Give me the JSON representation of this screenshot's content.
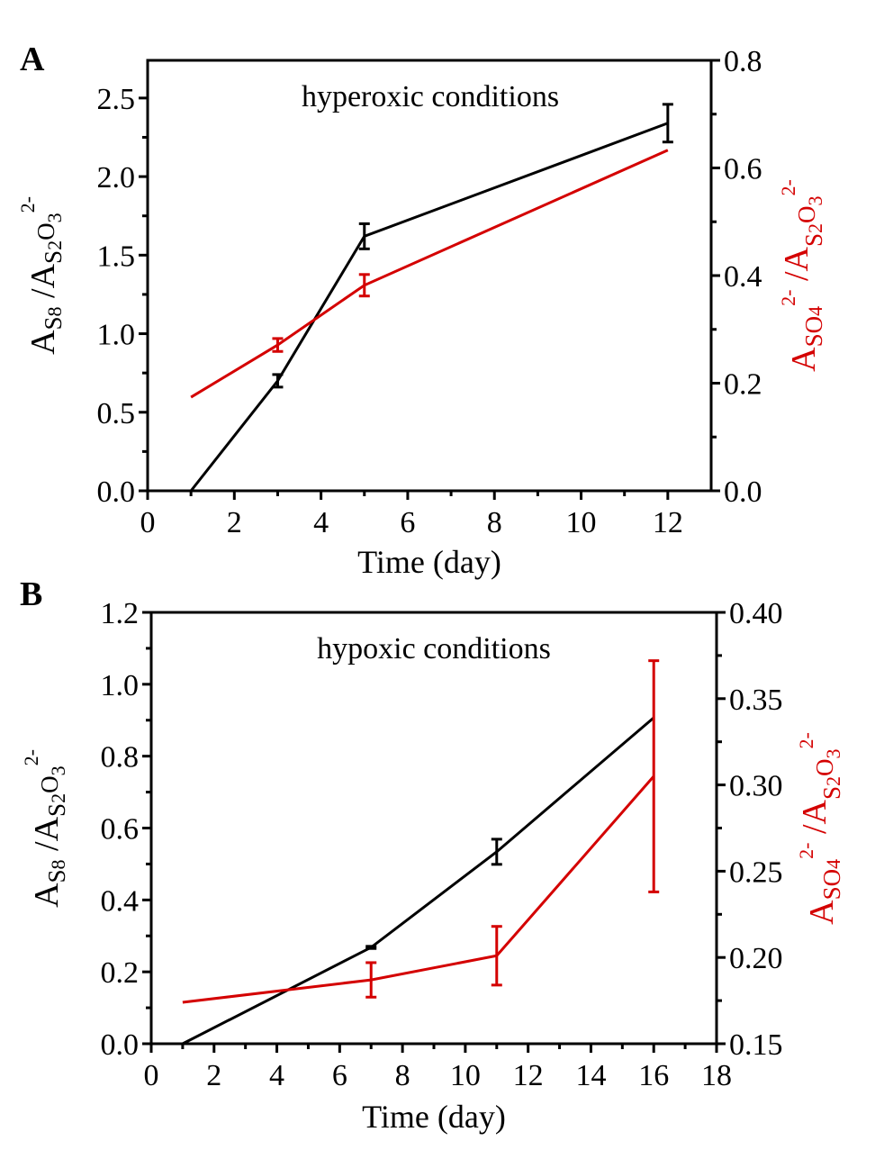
{
  "colors": {
    "black_series": "#000000",
    "red_series": "#d40000",
    "axis": "#000000"
  },
  "chart_data": [
    {
      "type": "line",
      "panel": "A",
      "annotation": "hyperoxic conditions",
      "xlabel": "Time (day)",
      "ylabel_left": {
        "main": "A",
        "sub1": "S",
        "sub1b": "8",
        "mid": " /A",
        "sub2": "S",
        "sub2b": "2",
        "sub2c": "O",
        "sub2d": "3",
        "sup": "2-"
      },
      "ylabel_right": {
        "main": "A",
        "sub1": "SO",
        "sub1b": "4",
        "sup1": "2-",
        "mid": " /A",
        "sub2": "S",
        "sub2b": "2",
        "sub2c": "O",
        "sub2d": "3",
        "sup2": "2-"
      },
      "xlim": [
        0,
        13
      ],
      "xticks": [
        0,
        2,
        4,
        6,
        8,
        10,
        12
      ],
      "xtick_labels": [
        "0",
        "2",
        "4",
        "6",
        "8",
        "10",
        "12"
      ],
      "ylim_left": [
        0,
        2.74
      ],
      "yticks_left": [
        0.0,
        0.5,
        1.0,
        1.5,
        2.0,
        2.5
      ],
      "ytick_labels_left": [
        "0.0",
        "0.5",
        "1.0",
        "1.5",
        "2.0",
        "2.5"
      ],
      "ylim_right": [
        0,
        0.8
      ],
      "yticks_right": [
        0.0,
        0.2,
        0.4,
        0.6,
        0.8
      ],
      "ytick_labels_right": [
        "0.0",
        "0.2",
        "0.4",
        "0.6",
        "0.8"
      ],
      "grid": false,
      "series": [
        {
          "name": "S8/S2O3 (left axis)",
          "axis": "left",
          "color": "#000000",
          "x": [
            1,
            3,
            5,
            12
          ],
          "values": [
            0.0,
            0.7,
            1.62,
            2.34
          ],
          "err": [
            null,
            0.04,
            0.08,
            0.12
          ]
        },
        {
          "name": "SO4/S2O3 (right axis)",
          "axis": "right",
          "color": "#d40000",
          "x": [
            1,
            3,
            5,
            12
          ],
          "values": [
            0.174,
            0.271,
            0.382,
            0.633
          ],
          "err": [
            null,
            0.012,
            0.02,
            null
          ]
        }
      ]
    },
    {
      "type": "line",
      "panel": "B",
      "annotation": "hypoxic conditions",
      "xlabel": "Time (day)",
      "ylabel_left": {
        "main": "A",
        "sub1": "S",
        "sub1b": "8",
        "mid": " /A",
        "sub2": "S",
        "sub2b": "2",
        "sub2c": "O",
        "sub2d": "3",
        "sup": "2-"
      },
      "ylabel_right": {
        "main": "A",
        "sub1": "SO",
        "sub1b": "4",
        "sup1": "2-",
        "mid": " /A",
        "sub2": "S",
        "sub2b": "2",
        "sub2c": "O",
        "sub2d": "3",
        "sup2": "2-"
      },
      "xlim": [
        0,
        18
      ],
      "xticks": [
        0,
        2,
        4,
        6,
        8,
        10,
        12,
        14,
        16,
        18
      ],
      "xtick_labels": [
        "0",
        "2",
        "4",
        "6",
        "8",
        "10",
        "12",
        "14",
        "16",
        "18"
      ],
      "ylim_left": [
        0,
        1.2
      ],
      "yticks_left": [
        0.0,
        0.2,
        0.4,
        0.6,
        0.8,
        1.0,
        1.2
      ],
      "ytick_labels_left": [
        "0.0",
        "0.2",
        "0.4",
        "0.6",
        "0.8",
        "1.0",
        "1.2"
      ],
      "ylim_right": [
        0.15,
        0.4
      ],
      "yticks_right": [
        0.15,
        0.2,
        0.25,
        0.3,
        0.35,
        0.4
      ],
      "ytick_labels_right": [
        "0.15",
        "0.20",
        "0.25",
        "0.30",
        "0.35",
        "0.40"
      ],
      "grid": false,
      "series": [
        {
          "name": "S8/S2O3 (left axis)",
          "axis": "left",
          "color": "#000000",
          "x": [
            1,
            7,
            11,
            16
          ],
          "values": [
            0.0,
            0.268,
            0.534,
            0.907
          ],
          "err": [
            null,
            0.003,
            0.035,
            null
          ]
        },
        {
          "name": "SO4/S2O3 (right axis)",
          "axis": "right",
          "color": "#d40000",
          "x": [
            1,
            7,
            11,
            16
          ],
          "values": [
            0.174,
            0.187,
            0.201,
            0.305
          ],
          "err": [
            null,
            0.01,
            0.017,
            0.067
          ]
        }
      ]
    }
  ]
}
